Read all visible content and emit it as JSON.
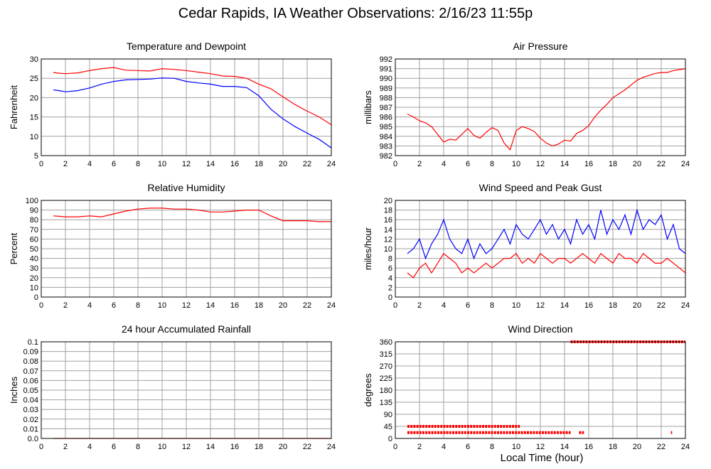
{
  "page": {
    "title": "Cedar Rapids, IA Weather Observations: 2/16/23 11:55p",
    "xlabel": "Local Time (hour)"
  },
  "colors": {
    "red": "#ff0000",
    "blue": "#0000ff",
    "grid": "#a0a0a0",
    "frame": "#000000"
  },
  "chart_data": [
    {
      "id": "temp",
      "type": "line",
      "title": "Temperature and Dewpoint",
      "ylabel": "Fahrenheit",
      "xlim": [
        0,
        24
      ],
      "ylim": [
        5,
        30
      ],
      "xticks": [
        0,
        2,
        4,
        6,
        8,
        10,
        12,
        14,
        16,
        18,
        20,
        22,
        24
      ],
      "yticks": [
        5,
        10,
        15,
        20,
        25,
        30
      ],
      "series": [
        {
          "color": "red",
          "x": [
            1,
            1.5,
            2,
            3,
            4,
            5,
            6,
            7,
            8,
            9,
            10,
            11,
            12,
            13,
            14,
            15,
            16,
            17,
            18,
            19,
            20,
            21,
            22,
            23,
            24
          ],
          "y": [
            26.5,
            26.3,
            26.2,
            26.4,
            27.0,
            27.5,
            27.8,
            27.1,
            27.0,
            26.9,
            27.5,
            27.3,
            27.0,
            26.6,
            26.2,
            25.6,
            25.5,
            25.0,
            23.5,
            22.3,
            20.2,
            18.2,
            16.5,
            15.0,
            13.0
          ]
        },
        {
          "color": "blue",
          "x": [
            1,
            1.5,
            2,
            3,
            4,
            5,
            6,
            7,
            8,
            9,
            10,
            11,
            12,
            13,
            14,
            15,
            16,
            17,
            18,
            19,
            20,
            21,
            22,
            23,
            24
          ],
          "y": [
            22.0,
            21.8,
            21.5,
            21.8,
            22.5,
            23.5,
            24.2,
            24.6,
            24.7,
            24.8,
            25.1,
            25.0,
            24.2,
            23.8,
            23.5,
            22.9,
            22.9,
            22.6,
            20.5,
            17.0,
            14.5,
            12.5,
            10.8,
            9.2,
            7.0
          ]
        }
      ]
    },
    {
      "id": "pressure",
      "type": "line",
      "title": "Air Pressure",
      "ylabel": "millibars",
      "xlim": [
        0,
        24
      ],
      "ylim": [
        982,
        992
      ],
      "xticks": [
        0,
        2,
        4,
        6,
        8,
        10,
        12,
        14,
        16,
        18,
        20,
        22,
        24
      ],
      "yticks": [
        982,
        983,
        984,
        985,
        986,
        987,
        988,
        989,
        990,
        991,
        992
      ],
      "series": [
        {
          "color": "red",
          "x": [
            1,
            1.5,
            2,
            2.5,
            3,
            3.5,
            4,
            4.5,
            5,
            5.5,
            6,
            6.5,
            7,
            7.5,
            8,
            8.5,
            9,
            9.5,
            10,
            10.5,
            11,
            11.5,
            12,
            12.5,
            13,
            13.5,
            14,
            14.5,
            15,
            15.5,
            16,
            16.5,
            17,
            17.5,
            18,
            18.5,
            19,
            19.5,
            20,
            20.5,
            21,
            21.5,
            22,
            22.5,
            23,
            23.5,
            24
          ],
          "y": [
            986.3,
            986.0,
            985.6,
            985.4,
            985.0,
            984.2,
            983.4,
            983.7,
            983.6,
            984.2,
            984.8,
            984.1,
            983.8,
            984.4,
            984.9,
            984.6,
            983.3,
            982.6,
            984.6,
            985.0,
            984.8,
            984.5,
            983.8,
            983.3,
            983.0,
            983.2,
            983.6,
            983.5,
            984.3,
            984.6,
            985.1,
            986.0,
            986.7,
            987.3,
            988.0,
            988.4,
            988.8,
            989.3,
            989.8,
            990.1,
            990.3,
            990.5,
            990.6,
            990.6,
            990.8,
            990.9,
            991.0
          ]
        }
      ]
    },
    {
      "id": "rh",
      "type": "line",
      "title": "Relative Humidity",
      "ylabel": "Percent",
      "xlim": [
        0,
        24
      ],
      "ylim": [
        0,
        100
      ],
      "xticks": [
        0,
        2,
        4,
        6,
        8,
        10,
        12,
        14,
        16,
        18,
        20,
        22,
        24
      ],
      "yticks": [
        0,
        10,
        20,
        30,
        40,
        50,
        60,
        70,
        80,
        90,
        100
      ],
      "series": [
        {
          "color": "red",
          "x": [
            1,
            1.5,
            2,
            3,
            4,
            5,
            6,
            7,
            8,
            9,
            10,
            11,
            12,
            13,
            14,
            15,
            16,
            17,
            18,
            19,
            20,
            21,
            22,
            23,
            24
          ],
          "y": [
            84,
            83.5,
            83,
            83,
            84,
            83,
            86,
            89,
            91,
            92,
            92,
            91,
            91,
            90,
            88,
            88,
            89,
            90,
            90,
            84,
            79,
            79,
            79,
            78,
            78
          ]
        }
      ]
    },
    {
      "id": "wind",
      "type": "line",
      "title": "Wind Speed and Peak Gust",
      "ylabel": "miles/hour",
      "xlim": [
        0,
        24
      ],
      "ylim": [
        0,
        20
      ],
      "xticks": [
        0,
        2,
        4,
        6,
        8,
        10,
        12,
        14,
        16,
        18,
        20,
        22,
        24
      ],
      "yticks": [
        0,
        2,
        4,
        6,
        8,
        10,
        12,
        14,
        16,
        18,
        20
      ],
      "series": [
        {
          "color": "red",
          "x": [
            1,
            1.5,
            2,
            2.5,
            3,
            3.5,
            4,
            4.5,
            5,
            5.5,
            6,
            6.5,
            7,
            7.5,
            8,
            8.5,
            9,
            9.5,
            10,
            10.5,
            11,
            11.5,
            12,
            12.5,
            13,
            13.5,
            14,
            14.5,
            15,
            15.5,
            16,
            16.5,
            17,
            17.5,
            18,
            18.5,
            19,
            19.5,
            20,
            20.5,
            21,
            21.5,
            22,
            22.5,
            23,
            23.5,
            24
          ],
          "y": [
            5,
            4,
            6,
            7,
            5,
            7,
            9,
            8,
            7,
            5,
            6,
            5,
            6,
            7,
            6,
            7,
            8,
            8,
            9,
            7,
            8,
            7,
            9,
            8,
            7,
            8,
            8,
            7,
            8,
            9,
            8,
            7,
            9,
            8,
            7,
            9,
            8,
            8,
            7,
            9,
            8,
            7,
            7,
            8,
            7,
            6,
            5
          ]
        },
        {
          "color": "blue",
          "x": [
            1,
            1.5,
            2,
            2.5,
            3,
            3.5,
            4,
            4.5,
            5,
            5.5,
            6,
            6.5,
            7,
            7.5,
            8,
            8.5,
            9,
            9.5,
            10,
            10.5,
            11,
            11.5,
            12,
            12.5,
            13,
            13.5,
            14,
            14.5,
            15,
            15.5,
            16,
            16.5,
            17,
            17.5,
            18,
            18.5,
            19,
            19.5,
            20,
            20.5,
            21,
            21.5,
            22,
            22.5,
            23,
            23.5,
            24
          ],
          "y": [
            9,
            10,
            12,
            8,
            11,
            13,
            16,
            12,
            10,
            9,
            12,
            8,
            11,
            9,
            10,
            12,
            14,
            11,
            15,
            13,
            12,
            14,
            16,
            13,
            15,
            12,
            14,
            11,
            16,
            13,
            15,
            12,
            18,
            13,
            16,
            14,
            17,
            13,
            18,
            14,
            16,
            15,
            17,
            12,
            15,
            10,
            9
          ]
        }
      ]
    },
    {
      "id": "rain",
      "type": "line",
      "title": "24 hour Accumulated Rainfall",
      "ylabel": "Inches",
      "xlim": [
        0,
        24
      ],
      "ylim": [
        0,
        0.1
      ],
      "xticks": [
        0,
        2,
        4,
        6,
        8,
        10,
        12,
        14,
        16,
        18,
        20,
        22,
        24
      ],
      "yticks": [
        0,
        0.01,
        0.02,
        0.03,
        0.04,
        0.05,
        0.06,
        0.07,
        0.08,
        0.09,
        0.1
      ],
      "yticklabels": [
        "0.0",
        "0.01",
        "0.02",
        "0.03",
        "0.04",
        "0.05",
        "0.06",
        "0.07",
        "0.08",
        "0.09",
        "0.1"
      ],
      "series": [
        {
          "color": "red",
          "x": [
            1,
            24
          ],
          "y": [
            0,
            0
          ]
        }
      ]
    },
    {
      "id": "winddir",
      "type": "scatter",
      "title": "Wind Direction",
      "ylabel": "degrees",
      "xlim": [
        0,
        24
      ],
      "ylim": [
        0,
        360
      ],
      "xticks": [
        0,
        2,
        4,
        6,
        8,
        10,
        12,
        14,
        16,
        18,
        20,
        22,
        24
      ],
      "yticks": [
        0,
        45,
        90,
        135,
        180,
        225,
        270,
        315,
        360
      ],
      "series": [
        {
          "color": "red",
          "segments": [
            {
              "x0": 1.0,
              "x1": 10.3,
              "y": 45
            },
            {
              "x0": 1.0,
              "x1": 14.5,
              "y": 22
            },
            {
              "x0": 15.2,
              "x1": 15.6,
              "y": 22
            },
            {
              "x0": 22.8,
              "x1": 22.9,
              "y": 22
            },
            {
              "x0": 14.5,
              "x1": 24.0,
              "y": 360
            }
          ]
        }
      ]
    }
  ]
}
